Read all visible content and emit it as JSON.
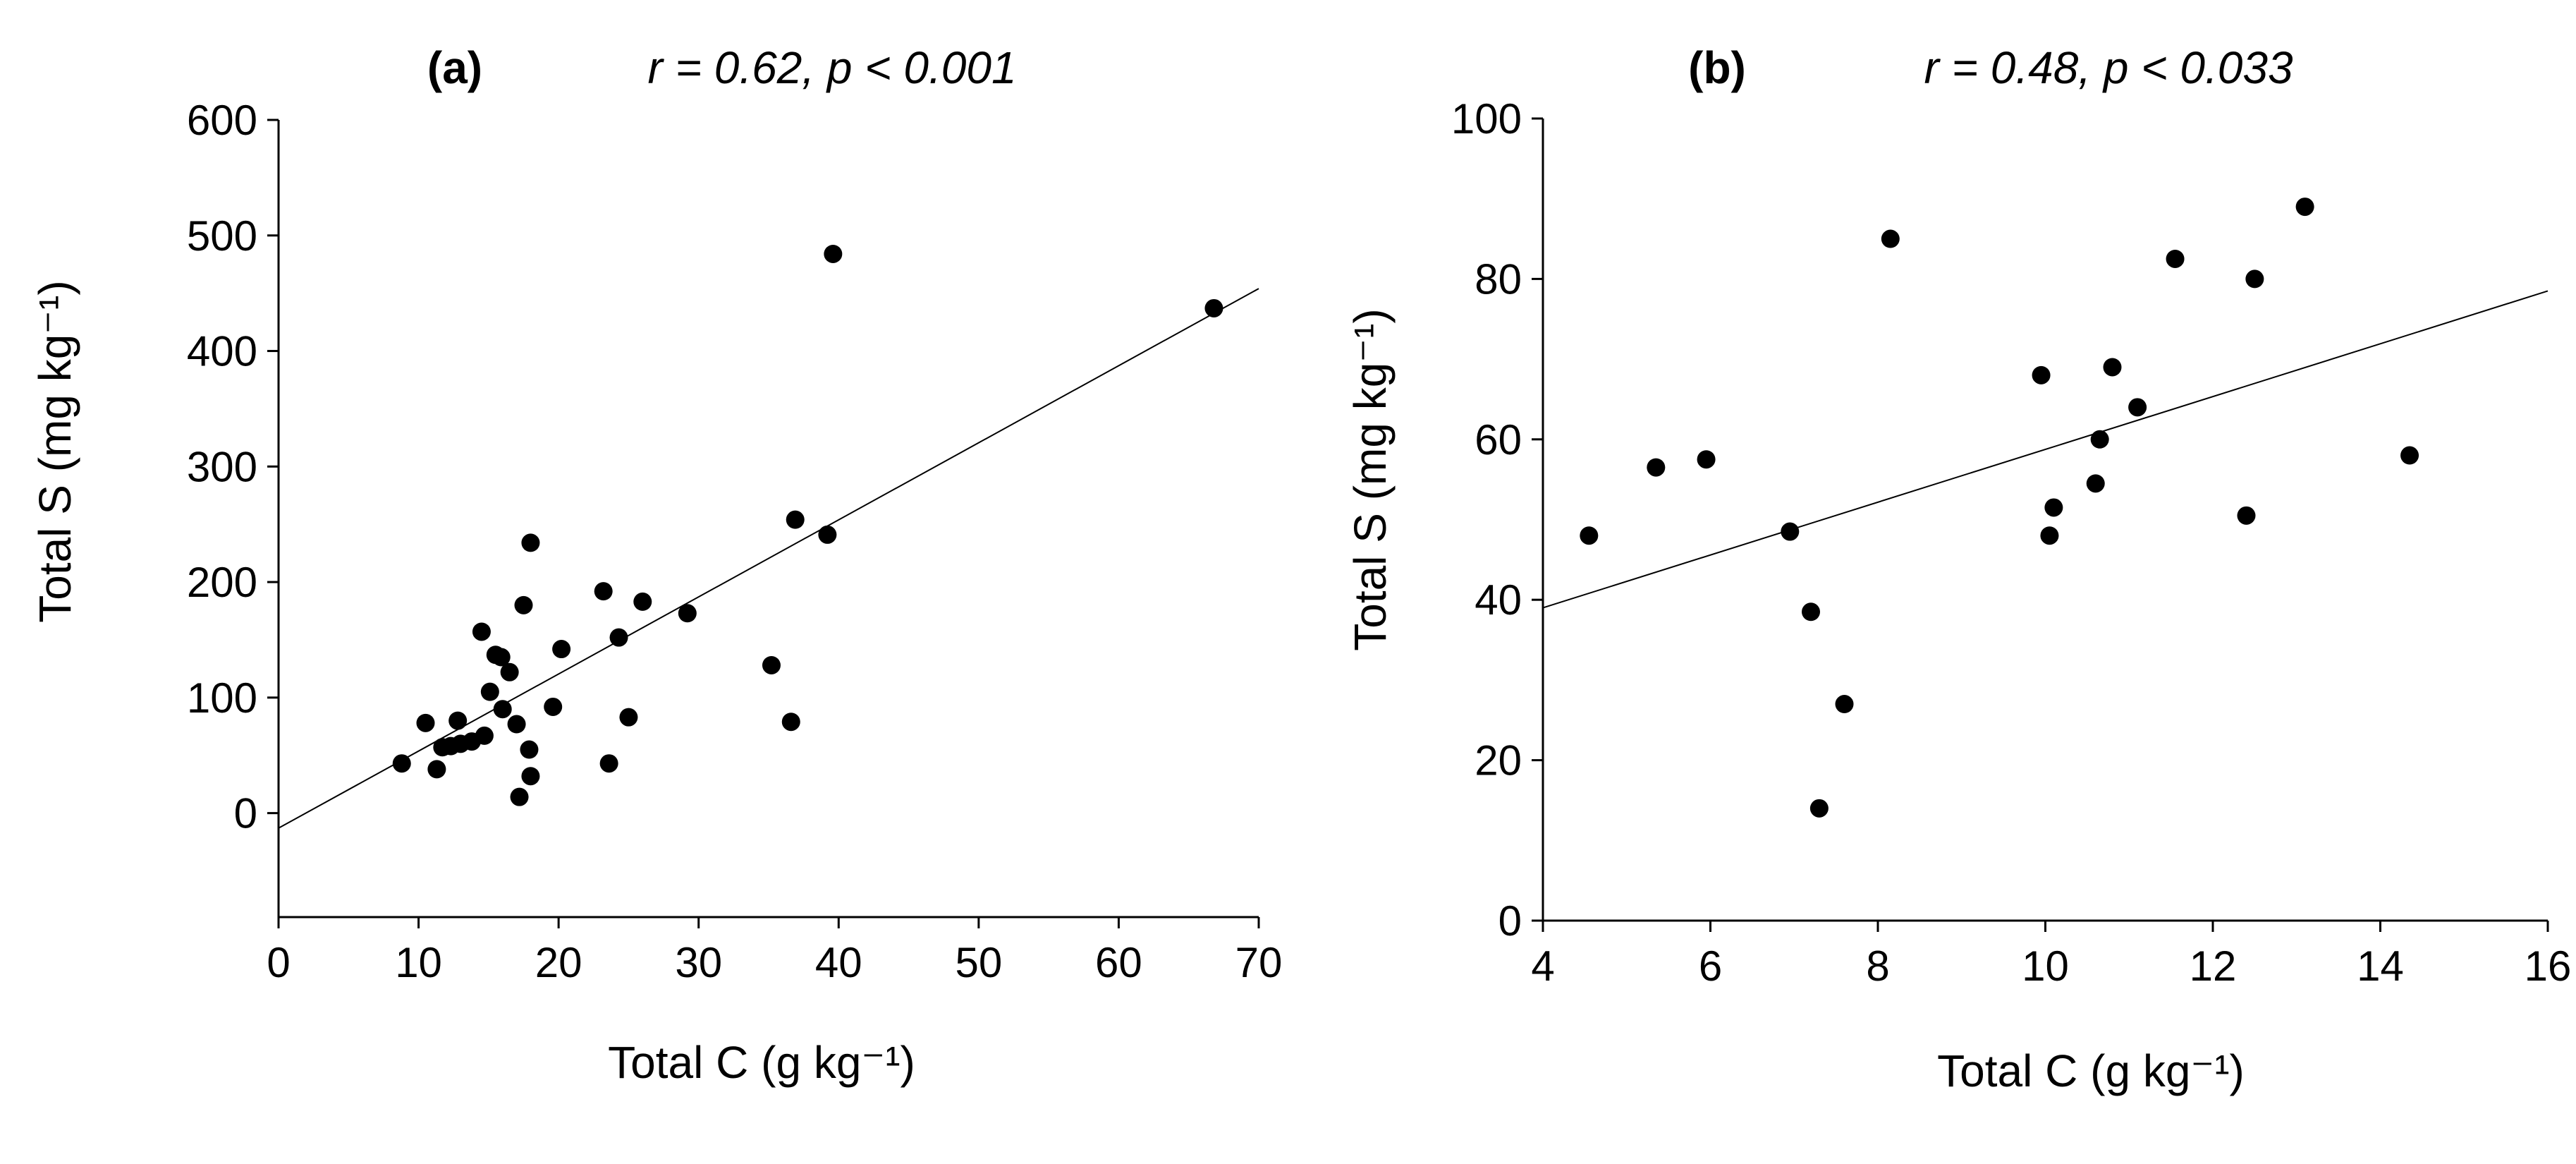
{
  "chart_data": [
    {
      "type": "scatter",
      "panel_label": "(a)",
      "annotation": "r = 0.62, p < 0.001",
      "xlabel": "Total C (g kg⁻¹)",
      "ylabel": "Total S (mg kg⁻¹)",
      "xlim": [
        0,
        70
      ],
      "ylim": [
        -90,
        600
      ],
      "xticks": [
        0,
        10,
        20,
        30,
        40,
        50,
        60,
        70
      ],
      "yticks": [
        0,
        100,
        200,
        300,
        400,
        500,
        600
      ],
      "trendline": {
        "x": [
          0,
          70
        ],
        "y": [
          -13,
          454
        ]
      },
      "points": [
        {
          "x": 8.8,
          "y": 43
        },
        {
          "x": 10.5,
          "y": 78
        },
        {
          "x": 11.3,
          "y": 38
        },
        {
          "x": 11.7,
          "y": 57
        },
        {
          "x": 12.3,
          "y": 58
        },
        {
          "x": 12.8,
          "y": 80
        },
        {
          "x": 13.0,
          "y": 60
        },
        {
          "x": 13.8,
          "y": 62
        },
        {
          "x": 14.5,
          "y": 157
        },
        {
          "x": 14.7,
          "y": 67
        },
        {
          "x": 15.1,
          "y": 105
        },
        {
          "x": 15.5,
          "y": 137
        },
        {
          "x": 15.9,
          "y": 135
        },
        {
          "x": 16.0,
          "y": 90
        },
        {
          "x": 16.5,
          "y": 122
        },
        {
          "x": 17.0,
          "y": 77
        },
        {
          "x": 17.2,
          "y": 14
        },
        {
          "x": 17.5,
          "y": 180
        },
        {
          "x": 17.9,
          "y": 55
        },
        {
          "x": 18.0,
          "y": 32
        },
        {
          "x": 18.0,
          "y": 234
        },
        {
          "x": 19.6,
          "y": 92
        },
        {
          "x": 20.2,
          "y": 142
        },
        {
          "x": 23.2,
          "y": 192
        },
        {
          "x": 23.6,
          "y": 43
        },
        {
          "x": 24.3,
          "y": 152
        },
        {
          "x": 25.0,
          "y": 83
        },
        {
          "x": 26.0,
          "y": 183
        },
        {
          "x": 29.2,
          "y": 173
        },
        {
          "x": 35.2,
          "y": 128
        },
        {
          "x": 36.6,
          "y": 79
        },
        {
          "x": 36.9,
          "y": 254
        },
        {
          "x": 39.2,
          "y": 241
        },
        {
          "x": 39.6,
          "y": 484
        },
        {
          "x": 66.8,
          "y": 437
        }
      ]
    },
    {
      "type": "scatter",
      "panel_label": "(b)",
      "annotation": "r = 0.48, p < 0.033",
      "xlabel": "Total C (g kg⁻¹)",
      "ylabel": "Total S (mg kg⁻¹)",
      "xlim": [
        4,
        16
      ],
      "ylim": [
        0,
        100
      ],
      "xticks": [
        4,
        6,
        8,
        10,
        12,
        14,
        16
      ],
      "yticks": [
        0,
        20,
        40,
        60,
        80,
        100
      ],
      "trendline": {
        "x": [
          4,
          16
        ],
        "y": [
          39,
          78.5
        ]
      },
      "points": [
        {
          "x": 4.55,
          "y": 48
        },
        {
          "x": 5.35,
          "y": 56.5
        },
        {
          "x": 5.95,
          "y": 57.5
        },
        {
          "x": 6.95,
          "y": 48.5
        },
        {
          "x": 7.2,
          "y": 38.5
        },
        {
          "x": 7.3,
          "y": 14
        },
        {
          "x": 7.6,
          "y": 27
        },
        {
          "x": 8.15,
          "y": 85
        },
        {
          "x": 9.95,
          "y": 68
        },
        {
          "x": 10.05,
          "y": 48
        },
        {
          "x": 10.1,
          "y": 51.5
        },
        {
          "x": 10.6,
          "y": 54.5
        },
        {
          "x": 10.65,
          "y": 60
        },
        {
          "x": 10.8,
          "y": 69
        },
        {
          "x": 11.1,
          "y": 64
        },
        {
          "x": 11.55,
          "y": 82.5
        },
        {
          "x": 12.4,
          "y": 50.5
        },
        {
          "x": 12.5,
          "y": 80
        },
        {
          "x": 13.1,
          "y": 89
        },
        {
          "x": 14.35,
          "y": 58
        }
      ]
    }
  ]
}
